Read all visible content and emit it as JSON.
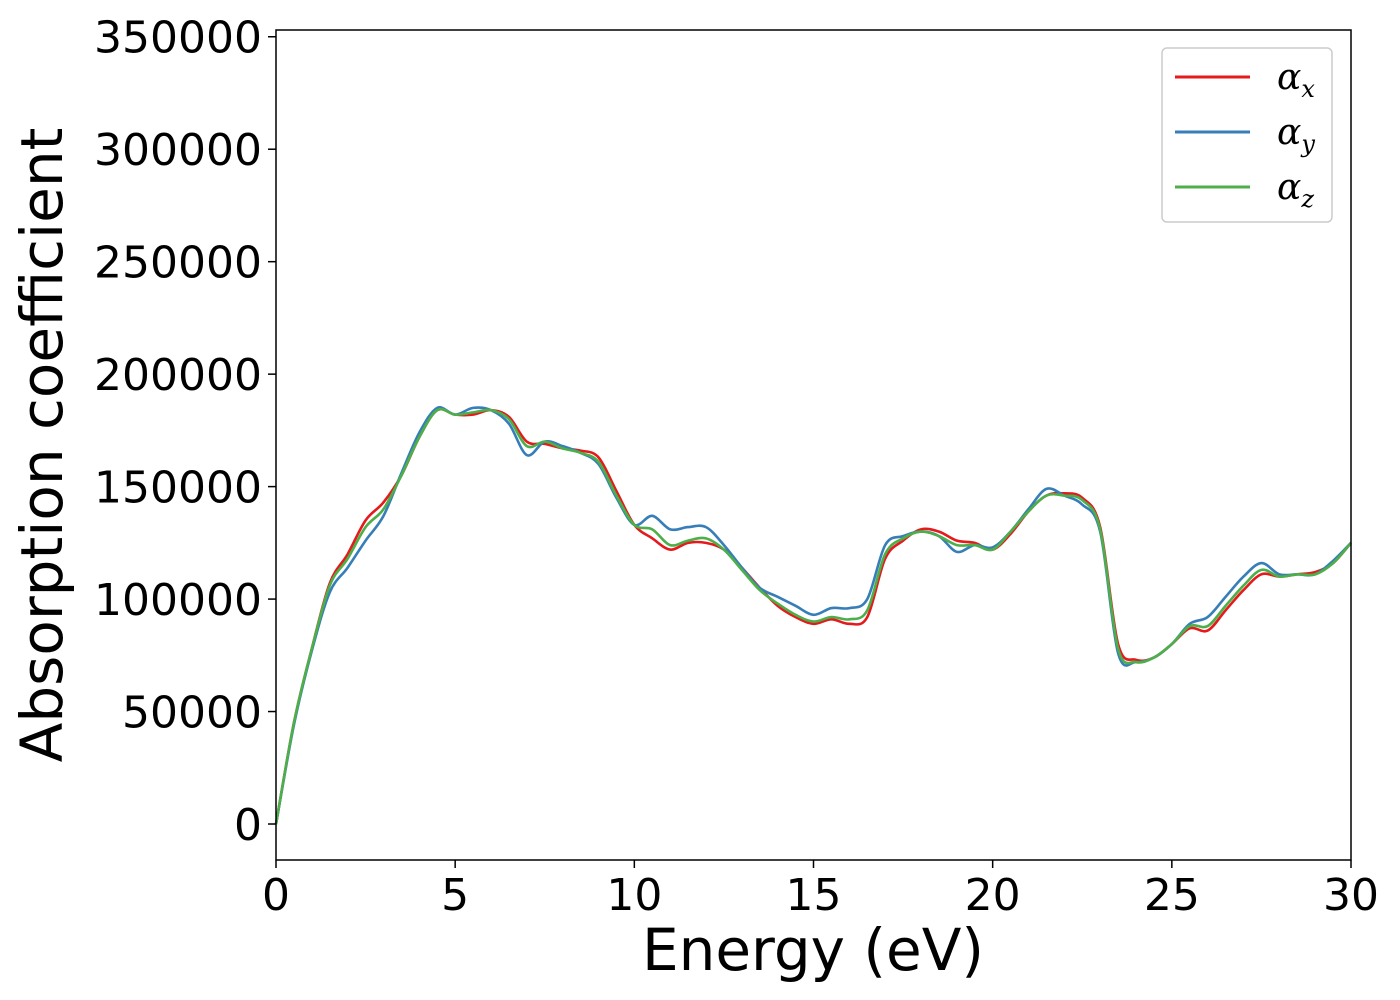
{
  "chart_data": {
    "type": "line",
    "title": "",
    "xlabel": "Energy (eV)",
    "ylabel": "Absorption coefficient",
    "xlim": [
      0,
      30
    ],
    "ylim": [
      -16000,
      353000
    ],
    "xticks": [
      0,
      5,
      10,
      15,
      20,
      25,
      30
    ],
    "yticks": [
      0,
      50000,
      100000,
      150000,
      200000,
      250000,
      300000,
      350000
    ],
    "grid": false,
    "legend_position": "top-right",
    "x": [
      0,
      0.5,
      1,
      1.5,
      2,
      2.5,
      3,
      3.5,
      4,
      4.5,
      5,
      5.5,
      6,
      6.5,
      7,
      7.5,
      8,
      8.5,
      9,
      9.5,
      10,
      10.5,
      11,
      11.5,
      12,
      12.5,
      13,
      13.5,
      14,
      14.5,
      15,
      15.5,
      16,
      16.5,
      17,
      17.5,
      18,
      18.5,
      19,
      19.5,
      20,
      20.5,
      21,
      21.5,
      22,
      22.5,
      23,
      23.5,
      24,
      24.5,
      25,
      25.5,
      26,
      26.5,
      27,
      27.5,
      28,
      28.5,
      29,
      29.5,
      30
    ],
    "series": [
      {
        "name": "αx",
        "legend_main": "α",
        "legend_sub": "x",
        "color": "#e41a1c",
        "values": [
          0,
          45000,
          78000,
          107000,
          120000,
          135000,
          143000,
          155000,
          172000,
          184000,
          182000,
          182000,
          184000,
          181000,
          170000,
          169000,
          167000,
          166000,
          163000,
          148000,
          133000,
          127000,
          122000,
          125000,
          125000,
          122000,
          114000,
          105000,
          97000,
          92000,
          89000,
          91000,
          89000,
          92000,
          118000,
          126000,
          131000,
          130000,
          126000,
          125000,
          122000,
          129000,
          139000,
          146000,
          147000,
          145000,
          132000,
          80000,
          73000,
          74000,
          80000,
          87000,
          86000,
          95000,
          104000,
          111000,
          110000,
          111000,
          112000,
          116000,
          125000
        ]
      },
      {
        "name": "αy",
        "legend_main": "α",
        "legend_sub": "y",
        "color": "#377eb8",
        "values": [
          0,
          44000,
          77000,
          103000,
          114000,
          126000,
          137000,
          156000,
          174000,
          185000,
          182000,
          185000,
          184000,
          178000,
          164000,
          170000,
          168000,
          165000,
          160000,
          145000,
          133000,
          137000,
          131000,
          132000,
          132000,
          124000,
          114000,
          105000,
          101000,
          97000,
          93000,
          96000,
          96000,
          100000,
          124000,
          128000,
          130000,
          128000,
          121000,
          124000,
          123000,
          130000,
          140000,
          149000,
          146000,
          142000,
          130000,
          76000,
          72000,
          74000,
          80000,
          89000,
          92000,
          101000,
          110000,
          116000,
          111000,
          111000,
          111000,
          117000,
          125000
        ]
      },
      {
        "name": "αz",
        "legend_main": "α",
        "legend_sub": "z",
        "color": "#4daf4a",
        "values": [
          0,
          45000,
          78000,
          106000,
          118000,
          132000,
          140000,
          155000,
          172000,
          184000,
          182000,
          183000,
          184000,
          180000,
          168000,
          170000,
          167000,
          165000,
          161000,
          146000,
          133000,
          131000,
          124000,
          126000,
          127000,
          122000,
          113000,
          104000,
          98000,
          93000,
          90000,
          92000,
          91000,
          95000,
          120000,
          127000,
          130000,
          128000,
          124000,
          124000,
          122000,
          130000,
          139000,
          146000,
          146000,
          144000,
          131000,
          78000,
          72000,
          74000,
          80000,
          88000,
          88000,
          97000,
          106000,
          113000,
          110000,
          111000,
          111000,
          116000,
          125000
        ]
      }
    ]
  }
}
